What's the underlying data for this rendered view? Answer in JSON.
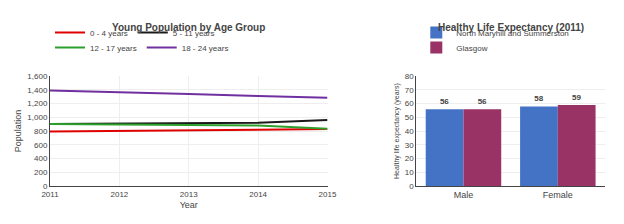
{
  "chart_data": [
    {
      "type": "line",
      "title": "Young Population by Age Group",
      "xlabel": "Year",
      "ylabel": "Population",
      "x": [
        2011,
        2012,
        2013,
        2014,
        2015
      ],
      "series": [
        {
          "name": "0 - 4 years",
          "color": "#e00000",
          "values": [
            795,
            800,
            805,
            820,
            830
          ]
        },
        {
          "name": "5 - 11 years",
          "color": "#1a1a1a",
          "values": [
            905,
            910,
            915,
            920,
            960
          ]
        },
        {
          "name": "12 - 17 years",
          "color": "#2ca02c",
          "values": [
            905,
            895,
            890,
            880,
            835
          ]
        },
        {
          "name": "18 - 24 years",
          "color": "#7030a0",
          "values": [
            1390,
            1370,
            1340,
            1310,
            1285
          ]
        }
      ],
      "xlim": [
        2011,
        2015
      ],
      "xticks": [
        2011,
        2012,
        2013,
        2014,
        2015
      ],
      "ylim": [
        0,
        1600
      ],
      "yticks": [
        0,
        200,
        400,
        600,
        800,
        {
          "value": 1000,
          "label": "1,000"
        },
        {
          "value": 1200,
          "label": "1,200"
        },
        {
          "value": 1400,
          "label": "1,400"
        },
        {
          "value": 1600,
          "label": "1,600"
        }
      ],
      "grid": true,
      "legend": "top"
    },
    {
      "type": "bar",
      "title": "Healthy Life Expectancy (2011)",
      "ylabel": "Healthy life expectancy (years)",
      "categories": [
        "Male",
        "Female"
      ],
      "series": [
        {
          "name": "North Maryhill and Summerston",
          "color": "#4472c4",
          "values": [
            56,
            58
          ]
        },
        {
          "name": "Glasgow",
          "color": "#993366",
          "values": [
            56,
            59
          ]
        }
      ],
      "ylim": [
        0,
        80
      ],
      "yticks": [
        0,
        10,
        20,
        30,
        40,
        50,
        60,
        70,
        80
      ],
      "grid": "y",
      "legend": "top",
      "data_labels": true
    }
  ]
}
